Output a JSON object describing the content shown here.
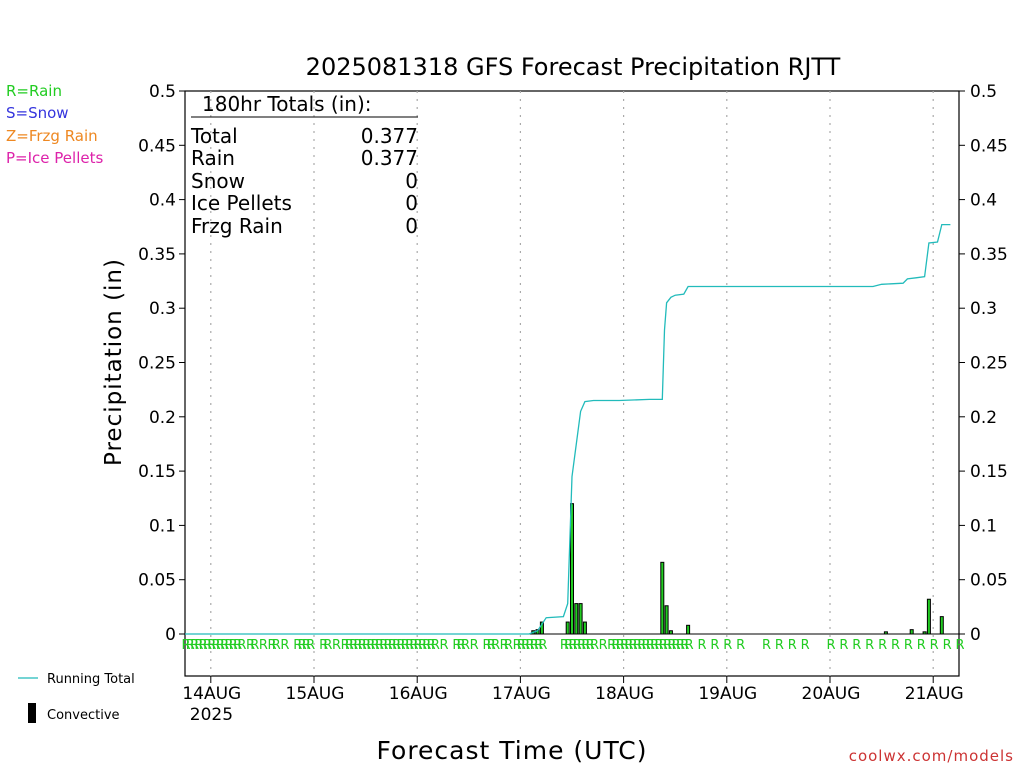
{
  "colors": {
    "rain": "#22cc22",
    "snow": "#3333dd",
    "frzg_rain": "#ee8822",
    "ice_pellets": "#dd22aa",
    "running_total": "#22bbbb",
    "convective": "#000000",
    "credit": "#cc3333"
  },
  "type_legend": {
    "rain": "R=Rain",
    "snow": "S=Snow",
    "frzg_rain": "Z=Frzg Rain",
    "ice_pellets": "P=Ice Pellets"
  },
  "line_legend": {
    "running_total": "Running Total",
    "convective": "Convective"
  },
  "totals": {
    "header": "180hr Totals (in):",
    "rows": [
      {
        "label": "Total",
        "value": "0.377"
      },
      {
        "label": "Rain",
        "value": "0.377"
      },
      {
        "label": "Snow",
        "value": "0"
      },
      {
        "label": "Ice Pellets",
        "value": "0"
      },
      {
        "label": "Frzg Rain",
        "value": "0"
      }
    ]
  },
  "credit": "coolwx.com/models",
  "chart_data": {
    "type": "bar",
    "title": "2025081318 GFS Forecast Precipitation RJTT",
    "xlabel": "Forecast Time (UTC)",
    "ylabel": "Precipitation (in)",
    "x_unit": "hours from 2025-08-13 18Z",
    "xlim": [
      0,
      180
    ],
    "ylim": [
      0,
      0.5
    ],
    "x_ticks": [
      {
        "hour": 6,
        "label": "14AUG",
        "sublabel": "2025"
      },
      {
        "hour": 30,
        "label": "15AUG"
      },
      {
        "hour": 54,
        "label": "16AUG"
      },
      {
        "hour": 78,
        "label": "17AUG"
      },
      {
        "hour": 102,
        "label": "18AUG"
      },
      {
        "hour": 126,
        "label": "19AUG"
      },
      {
        "hour": 150,
        "label": "20AUG"
      },
      {
        "hour": 174,
        "label": "21AUG"
      }
    ],
    "y_ticks": [
      {
        "value": 0,
        "label": "0"
      },
      {
        "value": 0.05,
        "label": "0.05"
      },
      {
        "value": 0.1,
        "label": "0.1"
      },
      {
        "value": 0.15,
        "label": "0.15"
      },
      {
        "value": 0.2,
        "label": "0.2"
      },
      {
        "value": 0.25,
        "label": "0.25"
      },
      {
        "value": 0.3,
        "label": "0.3"
      },
      {
        "value": 0.35,
        "label": "0.35"
      },
      {
        "value": 0.4,
        "label": "0.4"
      },
      {
        "value": 0.45,
        "label": "0.45"
      },
      {
        "value": 0.5,
        "label": "0.5"
      }
    ],
    "grid": "vertical dotted",
    "series": [
      {
        "name": "Running Total",
        "kind": "line",
        "points": [
          [
            0,
            0
          ],
          [
            80,
            0
          ],
          [
            82,
            0.003
          ],
          [
            84,
            0.015
          ],
          [
            88,
            0.016
          ],
          [
            89,
            0.028
          ],
          [
            90,
            0.145
          ],
          [
            91,
            0.175
          ],
          [
            92,
            0.205
          ],
          [
            93,
            0.214
          ],
          [
            95,
            0.215
          ],
          [
            101,
            0.215
          ],
          [
            108,
            0.216
          ],
          [
            111,
            0.216
          ],
          [
            111.5,
            0.28
          ],
          [
            112,
            0.305
          ],
          [
            113,
            0.31
          ],
          [
            114,
            0.312
          ],
          [
            116,
            0.313
          ],
          [
            117,
            0.32
          ],
          [
            120,
            0.32
          ],
          [
            160,
            0.32
          ],
          [
            162,
            0.322
          ],
          [
            167,
            0.323
          ],
          [
            168,
            0.327
          ],
          [
            170,
            0.328
          ],
          [
            172,
            0.329
          ],
          [
            173,
            0.36
          ],
          [
            175,
            0.361
          ],
          [
            176,
            0.377
          ],
          [
            178,
            0.377
          ]
        ]
      },
      {
        "name": "Convective",
        "kind": "bar",
        "points": [
          [
            81,
            0.003
          ],
          [
            82,
            0.004
          ],
          [
            83,
            0.011
          ],
          [
            89,
            0.011
          ],
          [
            90,
            0.12
          ],
          [
            91,
            0.028
          ],
          [
            92,
            0.028
          ],
          [
            93,
            0.011
          ],
          [
            111,
            0.066
          ],
          [
            112,
            0.026
          ],
          [
            113,
            0.003
          ],
          [
            117,
            0.008
          ],
          [
            163,
            0.002
          ],
          [
            169,
            0.004
          ],
          [
            172,
            0.002
          ],
          [
            173,
            0.032
          ],
          [
            176,
            0.016
          ]
        ]
      }
    ],
    "precip_type_markers": {
      "letter": "R",
      "hours": [
        0,
        1,
        2,
        3,
        4,
        5,
        6,
        7,
        8,
        9,
        10,
        11,
        12,
        13,
        15,
        16,
        18,
        20,
        21,
        23,
        26,
        27,
        28,
        29,
        32,
        33,
        35,
        37,
        38,
        39,
        40,
        41,
        42,
        43,
        44,
        45,
        46,
        47,
        48,
        49,
        50,
        51,
        52,
        53,
        54,
        55,
        56,
        57,
        58,
        60,
        63,
        64,
        65,
        67,
        70,
        71,
        72,
        74,
        75,
        77,
        78,
        79,
        80,
        81,
        82,
        83,
        88,
        89,
        90,
        91,
        92,
        93,
        94,
        95,
        97,
        99,
        100,
        101,
        102,
        103,
        104,
        105,
        106,
        107,
        108,
        109,
        110,
        111,
        112,
        113,
        114,
        115,
        116,
        117,
        120,
        123,
        126,
        129,
        135,
        138,
        141,
        144,
        150,
        153,
        156,
        159,
        162,
        165,
        168,
        171,
        174,
        177,
        180
      ]
    }
  }
}
